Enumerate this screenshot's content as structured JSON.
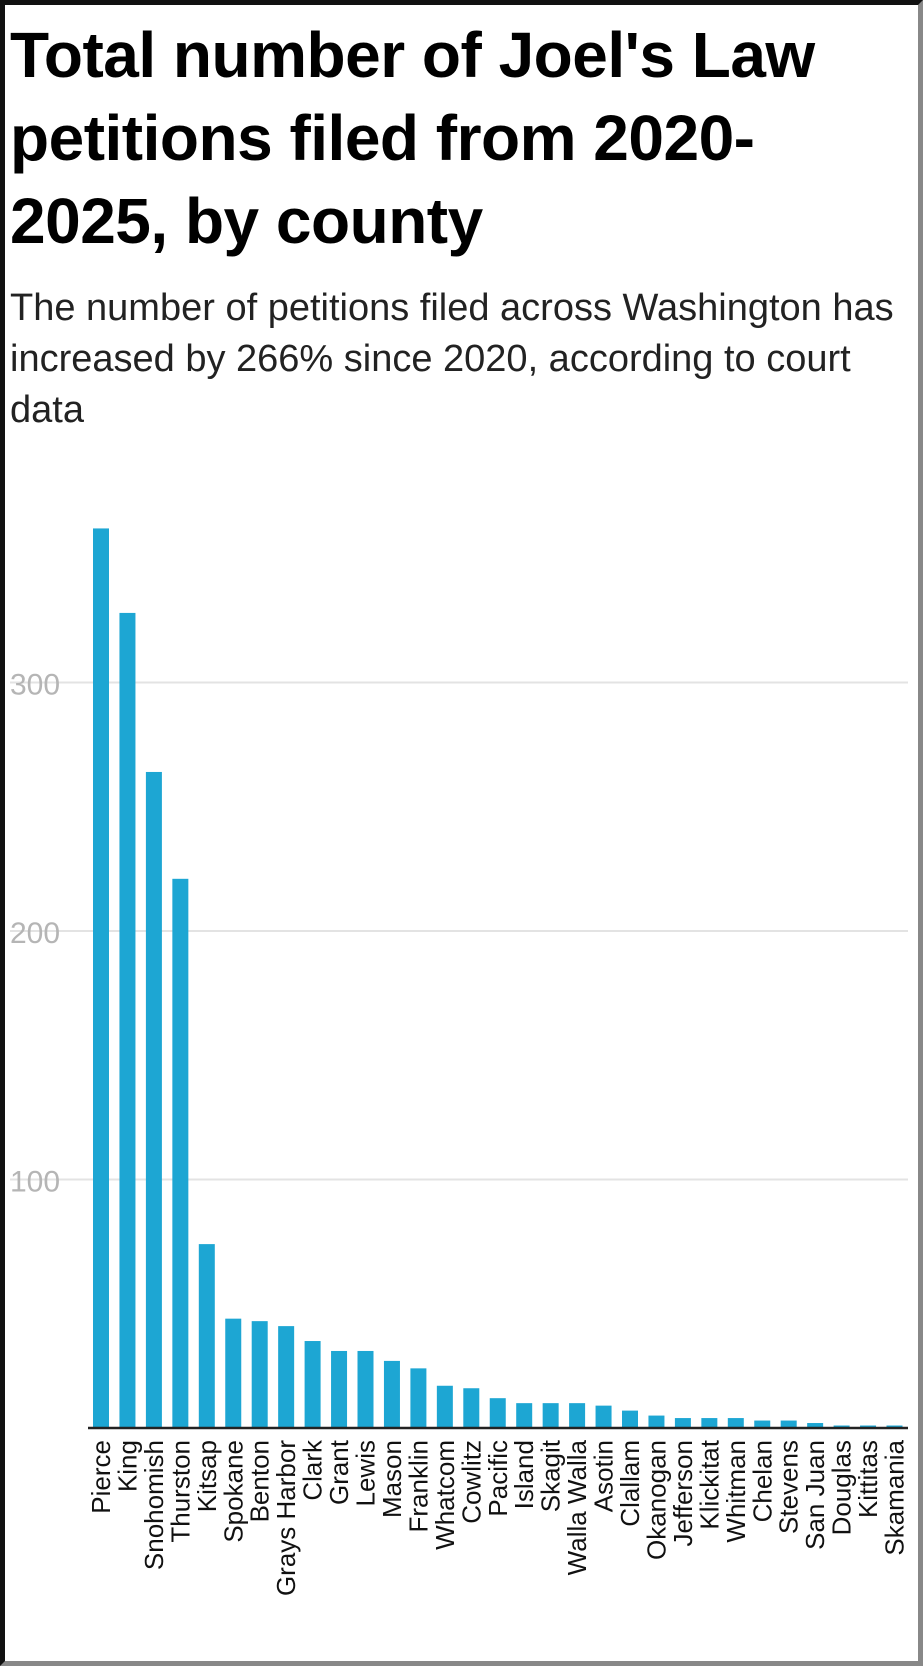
{
  "title": "Total number of Joel's Law petitions filed from 2020-2025, by county",
  "subtitle": "The number of petitions filed across Washington has increased by 266% since 2020, according to court data",
  "colors": {
    "bar": "#1da6d3",
    "grid": "#e3e3e3",
    "tick_label": "#b5b5b5",
    "baseline": "#222222",
    "category_label": "#111111"
  },
  "chart_data": {
    "type": "bar",
    "title": "Total number of Joel's Law petitions filed from 2020-2025, by county",
    "subtitle": "The number of petitions filed across Washington has increased by 266% since 2020, according to court data",
    "xlabel": "",
    "ylabel": "",
    "ylim": [
      0,
      375
    ],
    "yticks": [
      100,
      200,
      300
    ],
    "grid": true,
    "legend": "none",
    "categories": [
      "Pierce",
      "King",
      "Snohomish",
      "Thurston",
      "Kitsap",
      "Spokane",
      "Benton",
      "Grays Harbor",
      "Clark",
      "Grant",
      "Lewis",
      "Mason",
      "Franklin",
      "Whatcom",
      "Cowlitz",
      "Pacific",
      "Island",
      "Skagit",
      "Walla Walla",
      "Asotin",
      "Clallam",
      "Okanogan",
      "Jefferson",
      "Klickitat",
      "Whitman",
      "Chelan",
      "Stevens",
      "San Juan",
      "Douglas",
      "Kittitas",
      "Skamania"
    ],
    "values": [
      362,
      328,
      264,
      221,
      74,
      44,
      43,
      41,
      35,
      31,
      31,
      27,
      24,
      17,
      16,
      12,
      10,
      10,
      10,
      9,
      7,
      5,
      4,
      4,
      4,
      3,
      3,
      2,
      1,
      1,
      1
    ]
  }
}
